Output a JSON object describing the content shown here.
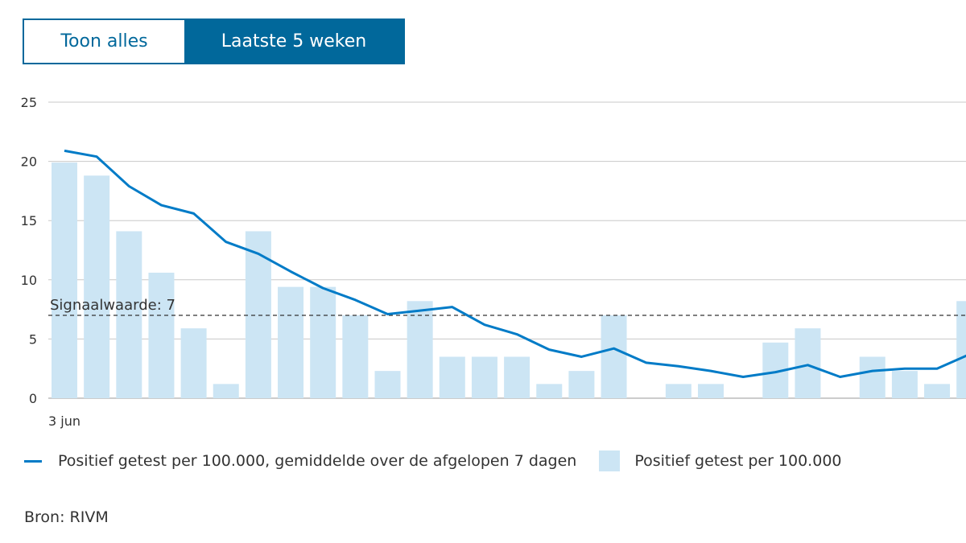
{
  "toggle": {
    "show_all": "Toon alles",
    "last_5_weeks": "Laatste 5 weken",
    "active": "last_5_weeks"
  },
  "colors": {
    "accent": "#01689b",
    "line": "#007bc7",
    "bars": "#cce5f4",
    "threshold": "#333333"
  },
  "chart_data": {
    "type": "bar+line",
    "ylim": [
      0,
      25
    ],
    "y_ticks": [
      0,
      5,
      10,
      15,
      20,
      25
    ],
    "x_tick_labels": [
      "3 jun"
    ],
    "grid": true,
    "threshold": {
      "label": "Signaalwaarde: 7",
      "value": 7
    },
    "series": [
      {
        "name": "Positief getest per 100.000",
        "type": "bar",
        "values": [
          19.9,
          18.8,
          14.1,
          10.6,
          5.9,
          1.2,
          14.1,
          9.4,
          9.4,
          7.0,
          2.3,
          8.2,
          3.5,
          3.5,
          3.5,
          1.2,
          2.3,
          7.0,
          0,
          1.2,
          1.2,
          0,
          4.7,
          5.9,
          0,
          3.5,
          2.3,
          1.2,
          8.2
        ]
      },
      {
        "name": "Positief getest per 100.000, gemiddelde over de afgelopen 7 dagen",
        "type": "line",
        "values": [
          20.9,
          20.4,
          17.9,
          16.3,
          15.6,
          13.2,
          12.2,
          10.7,
          9.3,
          8.3,
          7.1,
          7.4,
          7.7,
          6.2,
          5.4,
          4.1,
          3.5,
          4.2,
          3.0,
          2.7,
          2.3,
          1.8,
          2.2,
          2.8,
          1.8,
          2.3,
          2.5,
          2.5,
          3.7
        ]
      }
    ],
    "legend_placement": "bottom"
  },
  "legend": {
    "line_label": "Positief getest per 100.000, gemiddelde over de afgelopen 7 dagen",
    "bar_label": "Positief getest per 100.000"
  },
  "source": "Bron: RIVM"
}
